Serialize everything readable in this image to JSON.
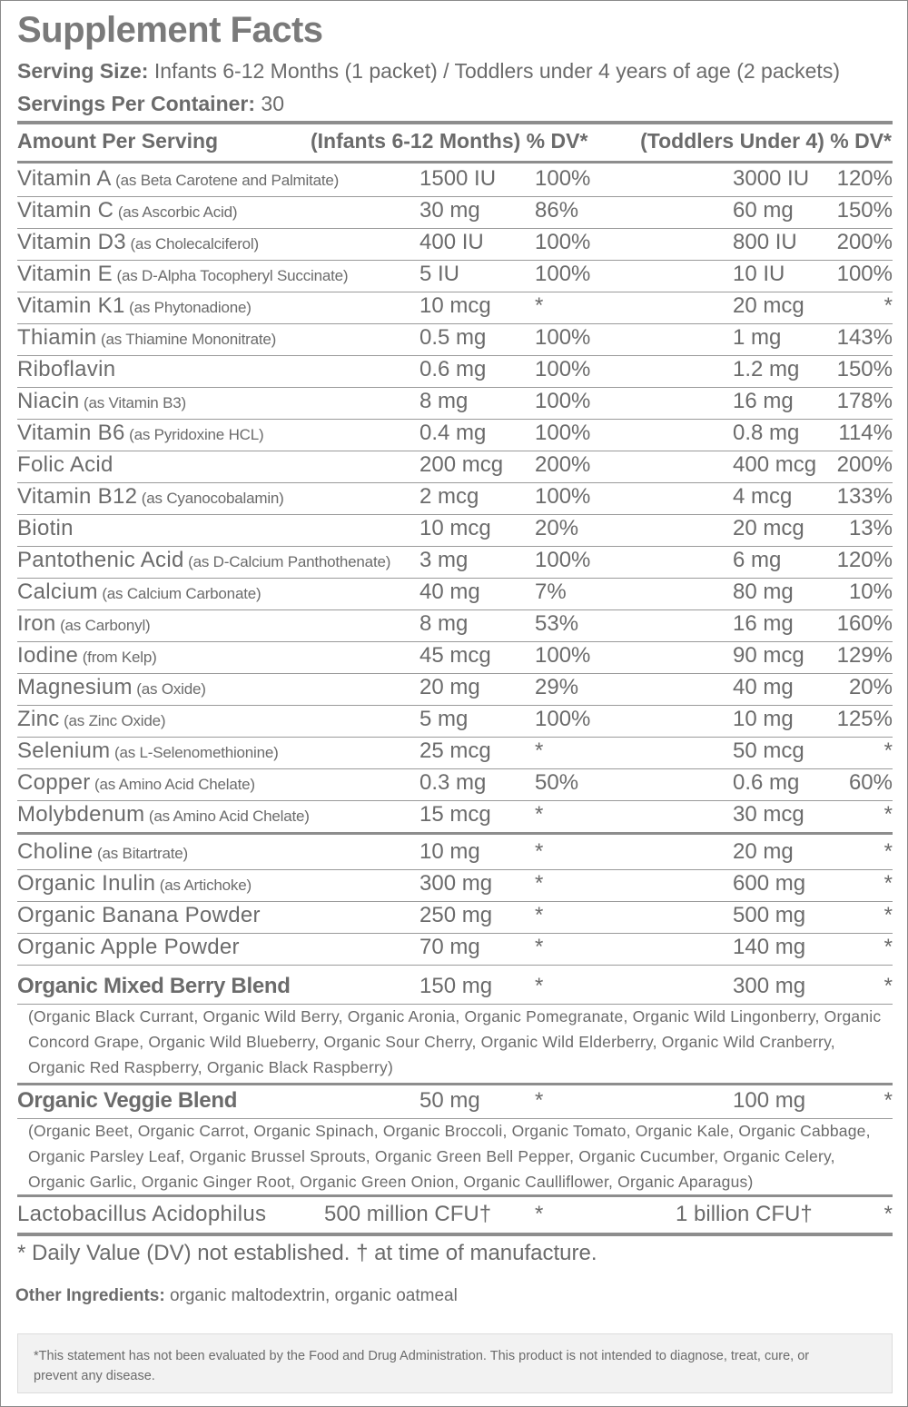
{
  "title": "Supplement Facts",
  "serving_size_label": "Serving Size:",
  "serving_size_value": " Infants 6-12 Months (1 packet) / Toddlers under 4 years of age (2 packets)",
  "servings_per_container_label": "Servings Per Container:",
  "servings_per_container_value": " 30",
  "header": {
    "amount": "Amount Per Serving",
    "infants": "(Infants 6-12 Months) % DV*",
    "toddlers": "(Toddlers Under 4) % DV*"
  },
  "rows": [
    {
      "name": "Vitamin A",
      "sub": " (as Beta Carotene and Palmitate)",
      "inf": "1500 IU",
      "inf_dv": "100%",
      "tod": "3000 IU",
      "tod_dv": "120%"
    },
    {
      "name": "Vitamin C",
      "sub": " (as Ascorbic Acid)",
      "inf": "30 mg",
      "inf_dv": "86%",
      "tod": "60 mg",
      "tod_dv": "150%"
    },
    {
      "name": "Vitamin D3",
      "sub": " (as Cholecalciferol)",
      "inf": "400 IU",
      "inf_dv": "100%",
      "tod": "800 IU",
      "tod_dv": "200%"
    },
    {
      "name": "Vitamin E",
      "sub": " (as D-Alpha Tocopheryl Succinate)",
      "inf": "5 IU",
      "inf_dv": "100%",
      "tod": "10 IU",
      "tod_dv": "100%"
    },
    {
      "name": "Vitamin K1",
      "sub": " (as Phytonadione)",
      "inf": "10 mcg",
      "inf_dv": "*",
      "tod": "20 mcg",
      "tod_dv": "*"
    },
    {
      "name": "Thiamin",
      "sub": " (as Thiamine Mononitrate)",
      "inf": "0.5 mg",
      "inf_dv": "100%",
      "tod": "1 mg",
      "tod_dv": "143%"
    },
    {
      "name": "Riboflavin",
      "sub": "",
      "inf": "0.6 mg",
      "inf_dv": "100%",
      "tod": "1.2 mg",
      "tod_dv": "150%"
    },
    {
      "name": "Niacin",
      "sub": " (as Vitamin B3)",
      "inf": "8 mg",
      "inf_dv": "100%",
      "tod": "16 mg",
      "tod_dv": "178%"
    },
    {
      "name": "Vitamin B6",
      "sub": " (as Pyridoxine HCL)",
      "inf": "0.4 mg",
      "inf_dv": "100%",
      "tod": "0.8 mg",
      "tod_dv": "114%"
    },
    {
      "name": "Folic Acid",
      "sub": "",
      "inf": "200 mcg",
      "inf_dv": "200%",
      "tod": "400 mcg",
      "tod_dv": "200%"
    },
    {
      "name": "Vitamin B12",
      "sub": " (as Cyanocobalamin)",
      "inf": "2 mcg",
      "inf_dv": "100%",
      "tod": "4 mcg",
      "tod_dv": "133%"
    },
    {
      "name": "Biotin",
      "sub": "",
      "inf": "10 mcg",
      "inf_dv": "20%",
      "tod": "20 mcg",
      "tod_dv": "13%"
    },
    {
      "name": "Pantothenic Acid",
      "sub": " (as D-Calcium Panthothenate)",
      "inf": "3 mg",
      "inf_dv": "100%",
      "tod": "6 mg",
      "tod_dv": "120%"
    },
    {
      "name": "Calcium",
      "sub": " (as Calcium Carbonate)",
      "inf": "40 mg",
      "inf_dv": "7%",
      "tod": "80 mg",
      "tod_dv": "10%"
    },
    {
      "name": "Iron",
      "sub": " (as Carbonyl)",
      "inf": "8 mg",
      "inf_dv": "53%",
      "tod": "16 mg",
      "tod_dv": "160%"
    },
    {
      "name": "Iodine",
      "sub": " (from Kelp)",
      "inf": "45 mcg",
      "inf_dv": "100%",
      "tod": "90 mcg",
      "tod_dv": "129%"
    },
    {
      "name": "Magnesium",
      "sub": " (as Oxide)",
      "inf": "20 mg",
      "inf_dv": "29%",
      "tod": "40 mg",
      "tod_dv": "20%"
    },
    {
      "name": "Zinc",
      "sub": " (as Zinc Oxide)",
      "inf": "5 mg",
      "inf_dv": "100%",
      "tod": "10 mg",
      "tod_dv": "125%"
    },
    {
      "name": "Selenium",
      "sub": " (as L-Selenomethionine)",
      "inf": "25 mcg",
      "inf_dv": "*",
      "tod": "50 mcg",
      "tod_dv": "*"
    },
    {
      "name": "Copper",
      "sub": " (as Amino Acid Chelate)",
      "inf": "0.3 mg",
      "inf_dv": "50%",
      "tod": "0.6 mg",
      "tod_dv": "60%"
    },
    {
      "name": "Molybdenum",
      "sub": " (as Amino Acid Chelate)",
      "inf": "15 mcg",
      "inf_dv": "*",
      "tod": "30 mcg",
      "tod_dv": "*"
    }
  ],
  "rows2": [
    {
      "name": "Choline",
      "sub": " (as Bitartrate)",
      "inf": "10 mg",
      "inf_dv": "*",
      "tod": "20 mg",
      "tod_dv": "*"
    },
    {
      "name": "Organic Inulin",
      "sub": " (as Artichoke)",
      "inf": "300 mg",
      "inf_dv": "*",
      "tod": "600 mg",
      "tod_dv": "*"
    },
    {
      "name": "Organic Banana Powder",
      "sub": "",
      "inf": "250 mg",
      "inf_dv": "*",
      "tod": "500 mg",
      "tod_dv": "*"
    },
    {
      "name": "Organic Apple Powder",
      "sub": "",
      "inf": "70 mg",
      "inf_dv": "*",
      "tod": "140 mg",
      "tod_dv": "*"
    }
  ],
  "berry": {
    "name": "Organic Mixed Berry Blend",
    "inf": "150 mg",
    "inf_dv": "*",
    "tod": "300 mg",
    "tod_dv": "*",
    "desc": "(Organic Black Currant, Organic Wild Berry, Organic Aronia, Organic Pomegranate, Organic Wild Lingonberry, Organic Concord Grape, Organic Wild Blueberry, Organic Sour Cherry, Organic Wild Elderberry, Organic Wild Cranberry, Organic Red Raspberry, Organic Black Raspberry)"
  },
  "veggie": {
    "name": "Organic Veggie Blend",
    "inf": "50 mg",
    "inf_dv": "*",
    "tod": "100 mg",
    "tod_dv": "*",
    "desc": "(Organic Beet, Organic Carrot, Organic Spinach, Organic Broccoli, Organic Tomato, Organic Kale, Organic Cabbage, Organic Parsley Leaf, Organic Brussel Sprouts, Organic Green Bell Pepper, Organic Cucumber, Organic Celery, Organic Garlic, Organic Ginger Root, Organic Green Onion, Organic Caulliflower, Organic Aparagus)"
  },
  "lacto": {
    "name": "Lactobacillus Acidophilus",
    "inf": "500 million CFU†",
    "inf_dv": "*",
    "tod": "1 billion CFU†",
    "tod_dv": "*"
  },
  "footnote": "* Daily Value (DV) not established. † at time of manufacture.",
  "other_label": "Other Ingredients:",
  "other_value": " organic maltodextrin, organic oatmeal",
  "disclaimer": "*This statement has not been evaluated by the Food and Drug Administration. This product is not intended to diagnose, treat, cure, or prevent any disease."
}
